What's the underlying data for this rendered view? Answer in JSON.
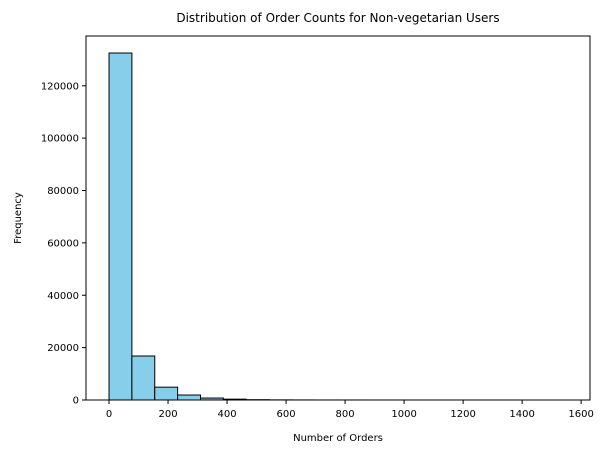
{
  "chart_data": {
    "type": "bar",
    "title": "Distribution of Order Counts for Non-vegetarian Users",
    "xlabel": "Number of Orders",
    "ylabel": "Frequency",
    "xlim": [
      -78,
      1630
    ],
    "ylim": [
      0,
      139000
    ],
    "xticks": [
      0,
      200,
      400,
      600,
      800,
      1000,
      1200,
      1400,
      1600
    ],
    "yticks": [
      0,
      20000,
      40000,
      60000,
      80000,
      100000,
      120000
    ],
    "bin_width": 77.5,
    "bin_start": 0,
    "values": [
      132500,
      16800,
      4900,
      1900,
      750,
      320,
      120,
      50,
      25,
      15,
      10,
      8,
      6,
      5,
      4,
      3,
      2,
      2,
      1,
      1
    ],
    "bar_color": "#87ceeb",
    "edge_color": "#000000",
    "grid": false,
    "legend": "none"
  }
}
